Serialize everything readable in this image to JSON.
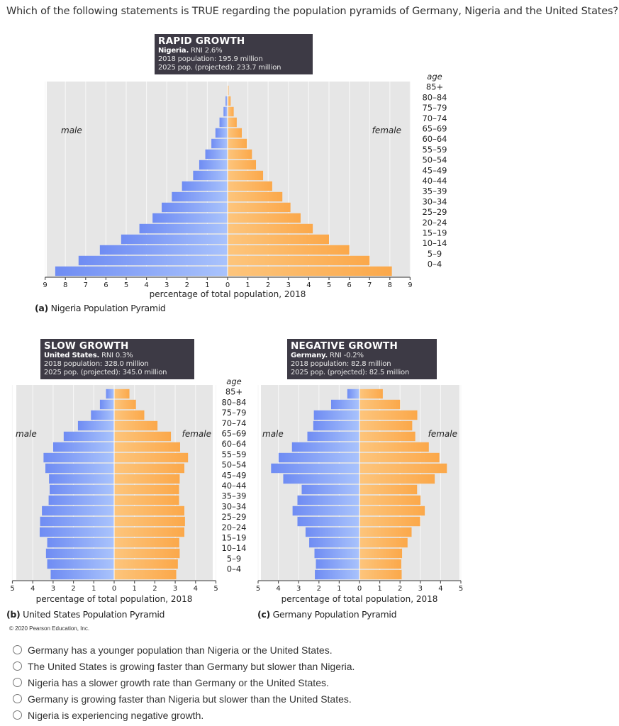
{
  "question": {
    "text": "Which of the following statements is TRUE regarding the population pyramids of Germany, Nigeria and the United States?"
  },
  "colors": {
    "male": "#7b96f5",
    "male_light": "#a9c0fb",
    "female": "#fdb45e",
    "female_light": "#fcc681",
    "plot_bg": "#e6e6e6",
    "gridline": "#f6f6f6",
    "infobox_bg": "#3d3a45"
  },
  "shared": {
    "age_header": "age",
    "male_label": "male",
    "female_label": "female",
    "xlabel": "percentage of total population, 2018"
  },
  "chart_data": [
    {
      "type": "bar",
      "subtype": "population-pyramid",
      "id": "nigeria",
      "caption_prefix": "(a)",
      "caption": "Nigeria Population Pyramid",
      "info": {
        "title": "RAPID GROWTH",
        "country": "Nigeria.",
        "rni": "RNI 2.6%",
        "pop2018": "2018 population: 195.9 million",
        "pop2025": "2025 pop. (projected): 233.7 million"
      },
      "xlabel": "percentage of total population, 2018",
      "xlim": [
        -9,
        9
      ],
      "xticks": [
        9,
        8,
        7,
        6,
        5,
        4,
        3,
        2,
        1,
        0,
        1,
        2,
        3,
        4,
        5,
        6,
        7,
        8,
        9
      ],
      "categories": [
        "0-4",
        "5-9",
        "10-14",
        "15-19",
        "20-24",
        "25-29",
        "30-34",
        "35-39",
        "40-44",
        "45-49",
        "50-54",
        "55-59",
        "60-64",
        "65-69",
        "70-74",
        "75-79",
        "80-84",
        "85+"
      ],
      "series": [
        {
          "name": "male",
          "values": [
            8.5,
            7.35,
            6.3,
            5.25,
            4.35,
            3.7,
            3.25,
            2.75,
            2.25,
            1.7,
            1.4,
            1.1,
            0.8,
            0.6,
            0.4,
            0.2,
            0.1,
            0.0
          ]
        },
        {
          "name": "female",
          "values": [
            8.1,
            7.0,
            6.0,
            5.0,
            4.2,
            3.6,
            3.1,
            2.7,
            2.2,
            1.75,
            1.4,
            1.2,
            0.95,
            0.7,
            0.45,
            0.3,
            0.15,
            0.05
          ]
        }
      ],
      "legend": {
        "male": "top-left",
        "female": "top-right"
      }
    },
    {
      "type": "bar",
      "subtype": "population-pyramid",
      "id": "united-states",
      "caption_prefix": "(b)",
      "caption": "United States Population Pyramid",
      "info": {
        "title": "SLOW GROWTH",
        "country": "United States.",
        "rni": "RNI 0.3%",
        "pop2018": "2018 population: 328.0 million",
        "pop2025": "2025 pop. (projected): 345.0 million"
      },
      "xlabel": "percentage of total population, 2018",
      "xlim": [
        -5,
        5
      ],
      "xticks": [
        5,
        4,
        3,
        2,
        1,
        0,
        1,
        2,
        3,
        4,
        5
      ],
      "categories": [
        "0-4",
        "5-9",
        "10-14",
        "15-19",
        "20-24",
        "25-29",
        "30-34",
        "35-39",
        "40-44",
        "45-49",
        "50-54",
        "55-59",
        "60-64",
        "65-69",
        "70-74",
        "75-79",
        "80-84",
        "85+"
      ],
      "series": [
        {
          "name": "male",
          "values": [
            3.12,
            3.29,
            3.35,
            3.29,
            3.66,
            3.64,
            3.55,
            3.22,
            3.17,
            3.2,
            3.38,
            3.47,
            3.0,
            2.48,
            1.78,
            1.14,
            0.7,
            0.4
          ]
        },
        {
          "name": "female",
          "values": [
            3.05,
            3.13,
            3.22,
            3.2,
            3.45,
            3.48,
            3.45,
            3.19,
            3.19,
            3.22,
            3.45,
            3.63,
            3.24,
            2.79,
            2.13,
            1.48,
            1.07,
            0.75
          ]
        }
      ],
      "legend": {
        "male": "middle-left",
        "female": "middle-right"
      }
    },
    {
      "type": "bar",
      "subtype": "population-pyramid",
      "id": "germany",
      "caption_prefix": "(c)",
      "caption": "Germany Population Pyramid",
      "info": {
        "title": "NEGATIVE GROWTH",
        "country": "Germany.",
        "rni": "RNI -0.2%",
        "pop2018": "2018 population: 82.8 million",
        "pop2025": "2025 pop. (projected): 82.5 million"
      },
      "xlabel": "percentage of total population, 2018",
      "xlim": [
        -5,
        5
      ],
      "xticks": [
        5,
        4,
        3,
        2,
        1,
        0,
        1,
        2,
        3,
        4,
        5
      ],
      "categories": [
        "0-4",
        "5-9",
        "10-14",
        "15-19",
        "20-24",
        "25-29",
        "30-34",
        "35-39",
        "40-44",
        "45-49",
        "50-54",
        "55-59",
        "60-64",
        "65-69",
        "70-74",
        "75-79",
        "80-84",
        "85+"
      ],
      "series": [
        {
          "name": "male",
          "values": [
            2.2,
            2.15,
            2.22,
            2.48,
            2.66,
            3.06,
            3.3,
            3.06,
            2.85,
            3.76,
            4.36,
            3.99,
            3.33,
            2.57,
            2.28,
            2.25,
            1.4,
            0.6
          ]
        },
        {
          "name": "female",
          "values": [
            2.08,
            2.06,
            2.1,
            2.37,
            2.57,
            2.99,
            3.22,
            3.01,
            2.84,
            3.71,
            4.31,
            3.94,
            3.42,
            2.75,
            2.6,
            2.85,
            2.0,
            1.15
          ]
        }
      ],
      "legend": {
        "male": "middle-left",
        "female": "middle-right"
      }
    }
  ],
  "copyright": "© 2020 Pearson Education, Inc.",
  "options": [
    {
      "label": "Germany has a younger population than Nigeria or the United States.",
      "selected": false
    },
    {
      "label": "The United States is growing faster than Germany but slower than Nigeria.",
      "selected": false
    },
    {
      "label": "Nigeria has a slower growth rate than Germany or the United States.",
      "selected": false
    },
    {
      "label": "Germany is growing faster than Nigeria but slower than the United States.",
      "selected": false
    },
    {
      "label": "Nigeria is experiencing negative growth.",
      "selected": false
    }
  ]
}
